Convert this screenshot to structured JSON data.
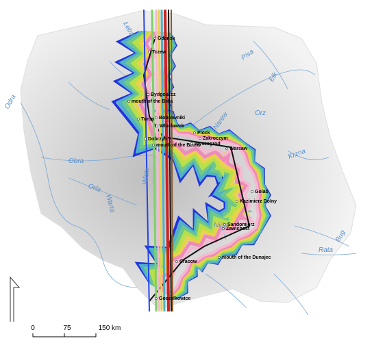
{
  "places": [
    {
      "label": "Gdansk"
    },
    {
      "label": "Tczew"
    },
    {
      "label": "Bydgoszcz"
    },
    {
      "label": "mouth of the Brda"
    },
    {
      "label": "Torun"
    },
    {
      "label": "Bobrowniki"
    },
    {
      "label": "Wloclawek"
    },
    {
      "label": "Plock"
    },
    {
      "label": "Zakroczym"
    },
    {
      "label": "Dobrzyn"
    },
    {
      "label": "mouth of the Bzura"
    },
    {
      "label": "Wyszogrod"
    },
    {
      "label": "Warsaw"
    },
    {
      "label": "Golab"
    },
    {
      "label": "Kazimierz Dolny"
    },
    {
      "label": "Sandomierz"
    },
    {
      "label": "Zawichost"
    },
    {
      "label": "Cracow"
    },
    {
      "label": "mouth of the Dunajec"
    },
    {
      "label": "Goczalkowice"
    }
  ],
  "rivers": [
    "Łeba",
    "Odra",
    "Pisa",
    "Ełk",
    "Orz",
    "Narew",
    "Obra",
    "Krzna",
    "Warta",
    "Orla",
    "Wisła",
    "Nida",
    "Rata",
    "Bug"
  ],
  "scale_bar": {
    "labels": [
      "0",
      "75",
      "150 km"
    ]
  }
}
